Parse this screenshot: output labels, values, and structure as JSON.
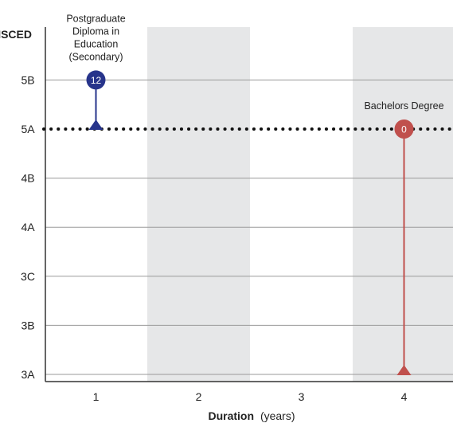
{
  "chart_data": {
    "type": "scatter",
    "title": "",
    "y_axis": {
      "label": "ISCED",
      "levels": [
        "3A",
        "3B",
        "3C",
        "4A",
        "4B",
        "5A",
        "5B"
      ]
    },
    "x_axis": {
      "label_bold": "Duration",
      "label_rest": "(years)",
      "ticks": [
        1,
        2,
        3,
        4
      ],
      "range": [
        0.5,
        4.5
      ]
    },
    "grid": true,
    "shaded_columns": [
      2,
      4
    ],
    "reference_line": {
      "level": "5A",
      "style": "dotted"
    },
    "programs": [
      {
        "label_lines": [
          "Postgraduate",
          "Diploma in",
          "Education",
          "(Secondary)"
        ],
        "duration": 1,
        "start_level": "5A",
        "end_level": "5B",
        "value": "12",
        "color": "#27348b"
      },
      {
        "label_lines": [
          "Bachelors Degree"
        ],
        "duration": 4,
        "start_level": "3A",
        "end_level": "5A",
        "value": "0",
        "color": "#c0504d"
      }
    ],
    "colors": {
      "shade": "#e6e7e8",
      "grid": "#9a9a9a",
      "axis": "#333333",
      "reference": "#111111"
    }
  }
}
